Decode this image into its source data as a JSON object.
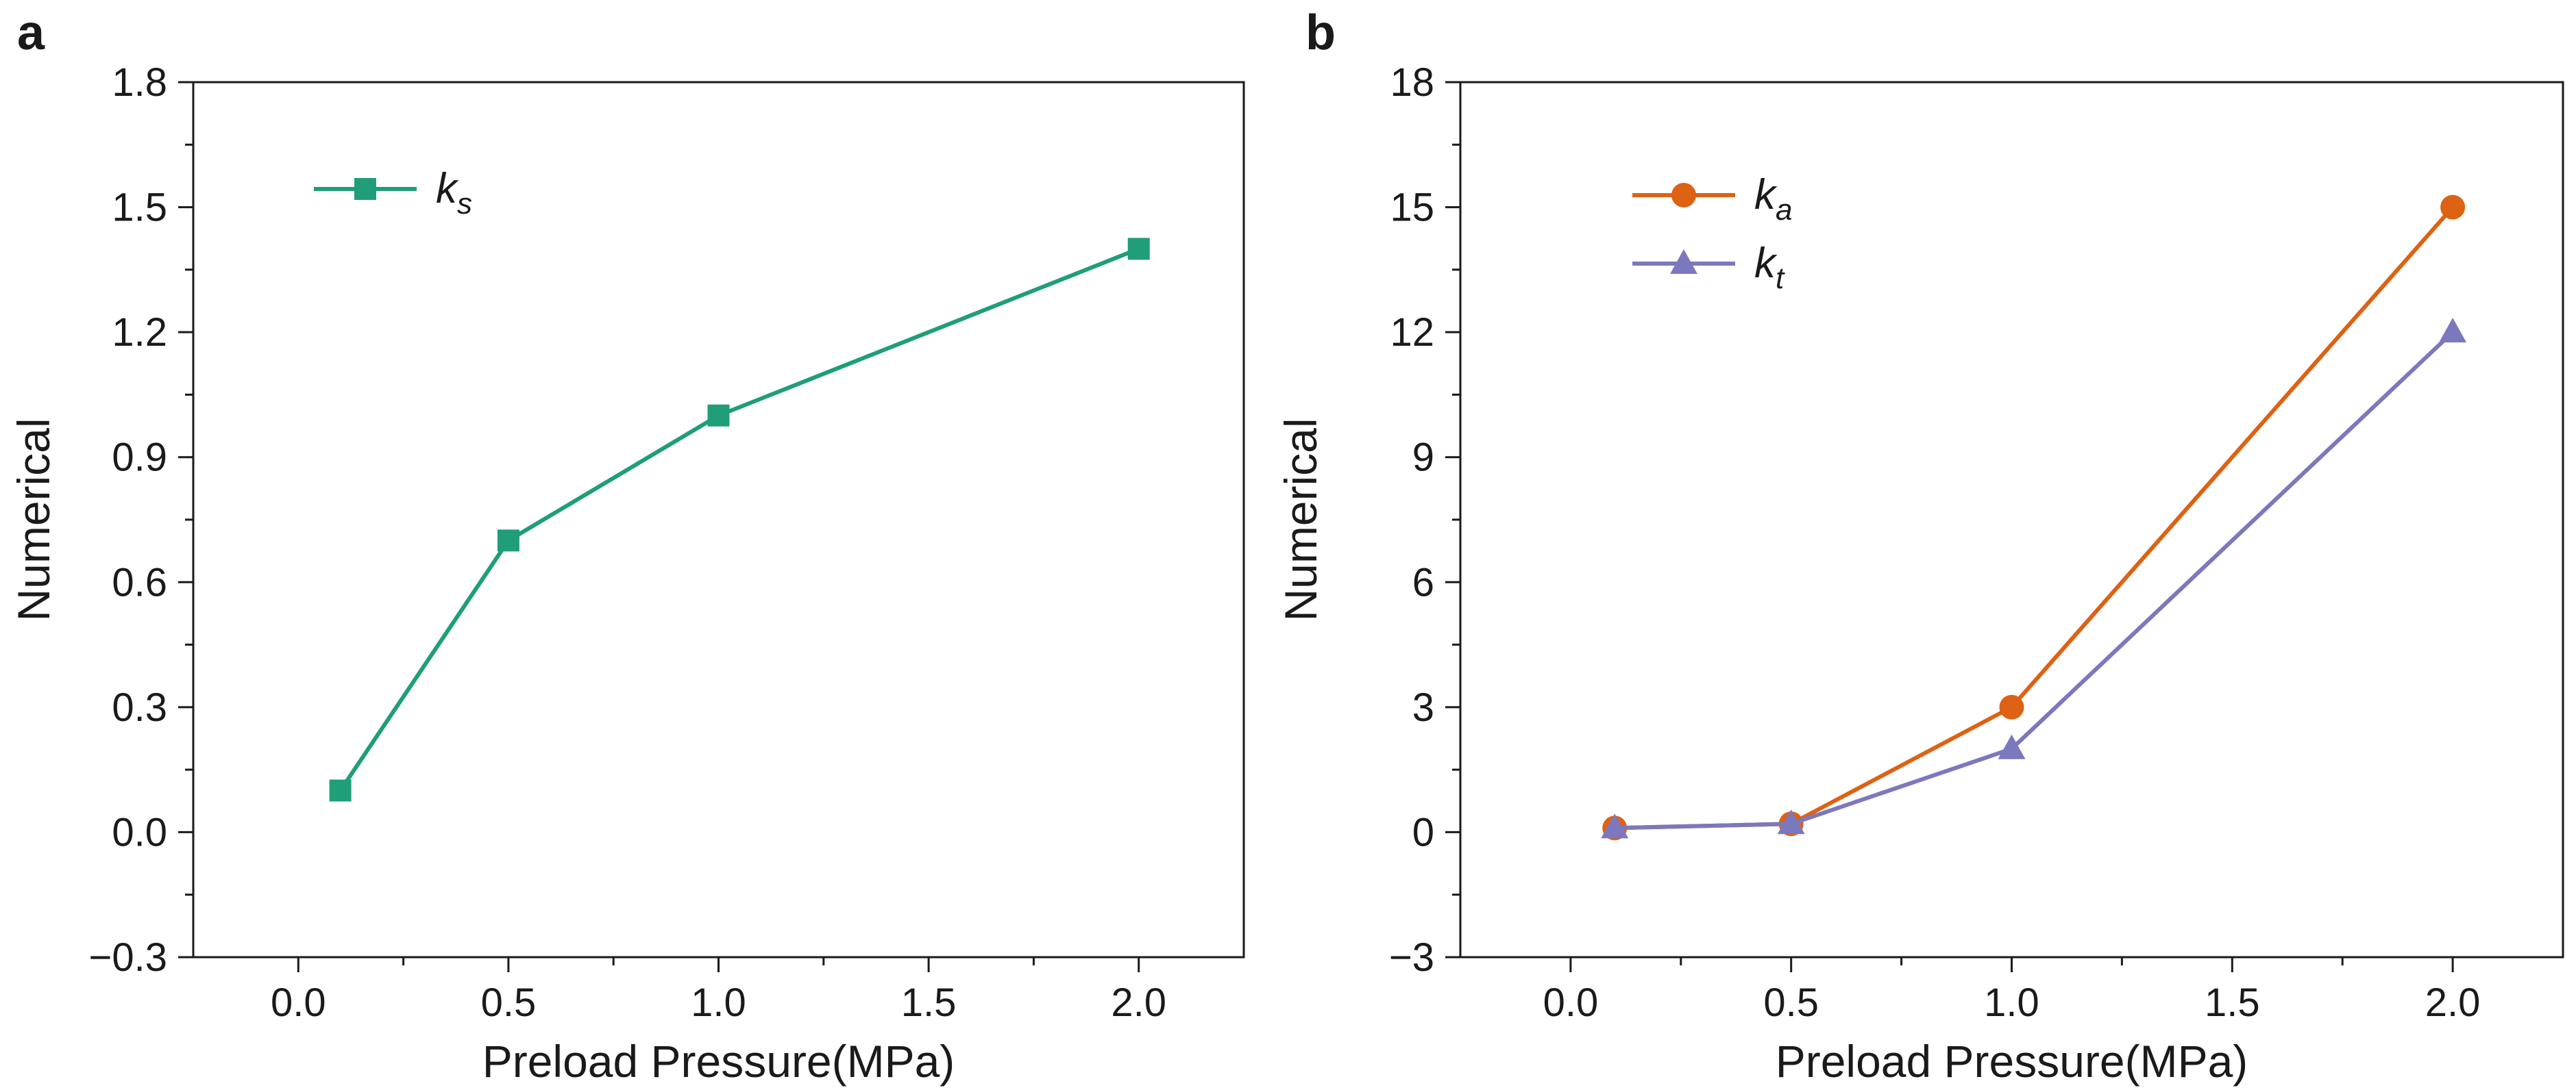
{
  "chart_data": [
    {
      "panel_label": "a",
      "type": "line",
      "xlabel": "Preload Pressure(MPa)",
      "ylabel": "Numerical",
      "xlim": [
        -0.25,
        2.25
      ],
      "ylim": [
        -0.3,
        1.8
      ],
      "xticks": [
        0.0,
        0.5,
        1.0,
        1.5,
        2.0
      ],
      "xtick_labels": [
        "0.0",
        "0.5",
        "1.0",
        "1.5",
        "2.0"
      ],
      "yticks": [
        -0.3,
        0.0,
        0.3,
        0.6,
        0.9,
        1.2,
        1.5,
        1.8
      ],
      "ytick_labels": [
        "−0.3",
        "0.0",
        "0.3",
        "0.6",
        "0.9",
        "1.2",
        "1.5",
        "1.8"
      ],
      "legend_position": "top-left",
      "series": [
        {
          "name": "k",
          "subscript": "s",
          "marker": "square",
          "color": "#1f9e79",
          "x": [
            0.1,
            0.5,
            1.0,
            2.0
          ],
          "y": [
            0.1,
            0.7,
            1.0,
            1.4
          ]
        }
      ]
    },
    {
      "panel_label": "b",
      "type": "line",
      "xlabel": "Preload Pressure(MPa)",
      "ylabel": "Numerical",
      "xlim": [
        -0.25,
        2.25
      ],
      "ylim": [
        -3,
        18
      ],
      "xticks": [
        0.0,
        0.5,
        1.0,
        1.5,
        2.0
      ],
      "xtick_labels": [
        "0.0",
        "0.5",
        "1.0",
        "1.5",
        "2.0"
      ],
      "yticks": [
        -3,
        0,
        3,
        6,
        9,
        12,
        15,
        18
      ],
      "ytick_labels": [
        "−3",
        "0",
        "3",
        "6",
        "9",
        "12",
        "15",
        "18"
      ],
      "legend_position": "top-left",
      "series": [
        {
          "name": "k",
          "subscript": "a",
          "marker": "circle",
          "color": "#dd6214",
          "x": [
            0.1,
            0.5,
            1.0,
            2.0
          ],
          "y": [
            0.1,
            0.2,
            3.0,
            15.0
          ]
        },
        {
          "name": "k",
          "subscript": "t",
          "marker": "triangle",
          "color": "#7b78bd",
          "x": [
            0.1,
            0.5,
            1.0,
            2.0
          ],
          "y": [
            0.1,
            0.2,
            2.0,
            12.0
          ]
        }
      ]
    }
  ]
}
